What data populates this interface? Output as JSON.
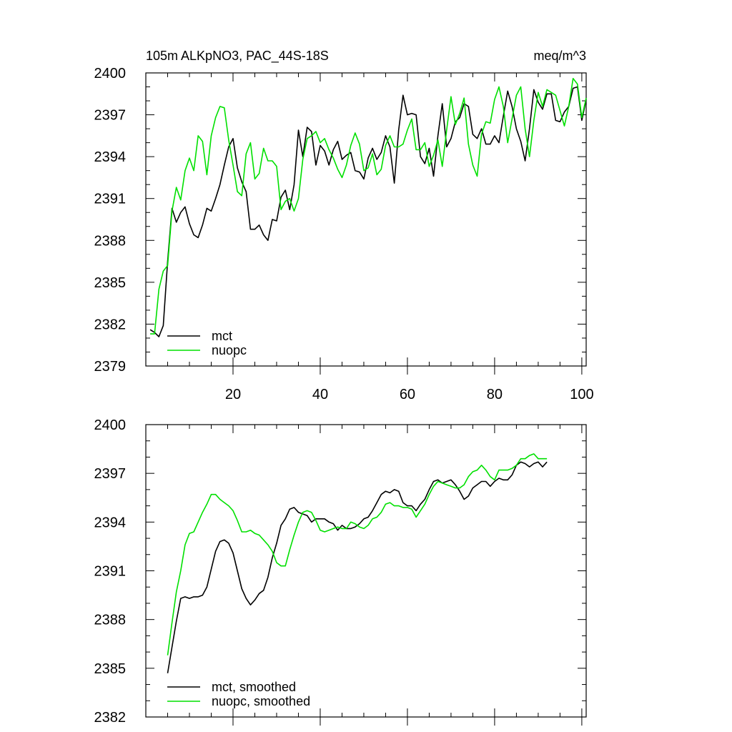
{
  "figure": {
    "title_left": "105m ALKpNO3, PAC_44S-18S",
    "title_right": "meq/m^3"
  },
  "colors": {
    "mct": "#000000",
    "nuopc": "#00e000"
  },
  "chart_data": [
    {
      "type": "line",
      "title": "105m ALKpNO3, PAC_44S-18S",
      "units": "meq/m^3",
      "xlim": [
        0,
        101
      ],
      "ylim": [
        2379,
        2400
      ],
      "xticks": [
        20,
        40,
        60,
        80,
        100
      ],
      "yticks": [
        2379,
        2382,
        2385,
        2388,
        2391,
        2394,
        2397,
        2400
      ],
      "legend": [
        "mct",
        "nuopc"
      ],
      "legend_position": "bottom-left",
      "series": [
        {
          "name": "mct",
          "color": "#000000",
          "x_start": 1,
          "values": [
            2381.6,
            2381.4,
            2381.1,
            2381.9,
            2386.5,
            2390.3,
            2389.3,
            2390.0,
            2390.4,
            2389.2,
            2388.4,
            2388.2,
            2389.1,
            2390.3,
            2390.1,
            2391.0,
            2392.0,
            2393.4,
            2394.7,
            2395.3,
            2393.2,
            2392.2,
            2391.5,
            2388.8,
            2388.8,
            2389.1,
            2388.4,
            2388.0,
            2389.5,
            2389.4,
            2391.1,
            2391.6,
            2390.2,
            2392.0,
            2395.9,
            2394.0,
            2396.1,
            2395.8,
            2393.4,
            2394.8,
            2394.4,
            2393.4,
            2394.5,
            2395.1,
            2393.8,
            2394.1,
            2394.3,
            2393.0,
            2392.9,
            2392.4,
            2393.9,
            2394.6,
            2393.8,
            2394.3,
            2395.5,
            2394.7,
            2392.1,
            2395.9,
            2398.4,
            2397.0,
            2397.1,
            2397.0,
            2394.0,
            2393.5,
            2394.6,
            2392.6,
            2395.5,
            2397.8,
            2394.7,
            2395.3,
            2396.5,
            2396.8,
            2397.8,
            2397.6,
            2395.6,
            2395.3,
            2396.0,
            2394.9,
            2394.9,
            2395.5,
            2395.0,
            2396.9,
            2398.7,
            2397.6,
            2396.0,
            2395.1,
            2393.7,
            2396.0,
            2398.8,
            2397.9,
            2397.4,
            2398.5,
            2398.5,
            2396.6,
            2396.5,
            2397.2,
            2397.6,
            2398.9,
            2399.0,
            2396.6,
            2398.1
          ]
        },
        {
          "name": "nuopc",
          "color": "#00e000",
          "x_start": 1,
          "values": [
            2381.3,
            2381.3,
            2384.5,
            2385.8,
            2386.2,
            2390.1,
            2391.8,
            2390.9,
            2393.0,
            2393.9,
            2393.0,
            2395.5,
            2395.1,
            2392.7,
            2395.5,
            2396.8,
            2397.6,
            2397.5,
            2395.2,
            2393.4,
            2391.5,
            2391.2,
            2394.2,
            2395.0,
            2392.4,
            2392.8,
            2394.6,
            2393.7,
            2393.7,
            2393.3,
            2390.2,
            2390.8,
            2391.0,
            2390.1,
            2391.0,
            2393.8,
            2395.3,
            2395.5,
            2395.8,
            2395.0,
            2395.3,
            2394.5,
            2393.9,
            2393.1,
            2392.5,
            2393.4,
            2394.8,
            2395.7,
            2394.9,
            2393.0,
            2393.2,
            2394.2,
            2392.7,
            2393.1,
            2394.8,
            2395.5,
            2394.7,
            2394.7,
            2394.9,
            2395.9,
            2396.7,
            2394.5,
            2394.5,
            2395.0,
            2393.3,
            2394.1,
            2395.2,
            2393.3,
            2395.9,
            2398.3,
            2396.3,
            2397.1,
            2398.2,
            2394.9,
            2393.4,
            2392.6,
            2395.6,
            2396.5,
            2396.4,
            2398.1,
            2399.0,
            2397.6,
            2395.0,
            2396.7,
            2398.4,
            2399.0,
            2396.0,
            2394.0,
            2396.6,
            2398.6,
            2397.6,
            2398.8,
            2398.6,
            2398.4,
            2397.3,
            2396.2,
            2397.6,
            2399.6,
            2399.2,
            2396.8,
            2398.2
          ]
        }
      ]
    },
    {
      "type": "line",
      "title": "",
      "xlim": [
        0,
        101
      ],
      "ylim": [
        2382,
        2400
      ],
      "xticks": [
        20,
        40,
        60,
        80,
        100
      ],
      "yticks": [
        2382,
        2385,
        2388,
        2391,
        2394,
        2397,
        2400
      ],
      "legend": [
        "mct, smoothed",
        "nuopc, smoothed"
      ],
      "legend_position": "bottom-left",
      "series": [
        {
          "name": "mct, smoothed",
          "color": "#000000",
          "x_start": 5,
          "values": [
            2384.7,
            2386.3,
            2387.9,
            2389.3,
            2389.4,
            2389.3,
            2389.4,
            2389.4,
            2389.5,
            2390.0,
            2391.1,
            2392.2,
            2392.8,
            2392.9,
            2392.7,
            2392.1,
            2391.0,
            2389.9,
            2389.3,
            2388.9,
            2389.2,
            2389.6,
            2389.8,
            2390.6,
            2391.8,
            2392.7,
            2393.8,
            2394.2,
            2394.8,
            2394.9,
            2394.6,
            2394.5,
            2394.4,
            2394.0,
            2394.2,
            2394.2,
            2394.2,
            2394.0,
            2393.9,
            2393.5,
            2393.8,
            2393.6,
            2393.6,
            2393.7,
            2393.9,
            2394.2,
            2394.3,
            2394.7,
            2395.2,
            2395.7,
            2395.9,
            2395.8,
            2396.0,
            2395.9,
            2395.2,
            2395.0,
            2395.0,
            2394.7,
            2395.1,
            2395.4,
            2396.0,
            2396.5,
            2396.6,
            2396.4,
            2396.5,
            2396.6,
            2396.3,
            2395.9,
            2395.4,
            2395.6,
            2396.1,
            2396.3,
            2396.5,
            2396.5,
            2396.2,
            2396.5,
            2396.7,
            2396.6,
            2396.6,
            2396.9,
            2397.5,
            2397.7,
            2397.6,
            2397.4,
            2397.6,
            2397.7,
            2397.4,
            2397.7
          ]
        },
        {
          "name": "nuopc, smoothed",
          "color": "#00e000",
          "x_start": 5,
          "values": [
            2385.8,
            2387.8,
            2389.7,
            2391.0,
            2392.6,
            2393.3,
            2393.4,
            2394.0,
            2394.6,
            2395.1,
            2395.7,
            2395.7,
            2395.4,
            2395.2,
            2395.0,
            2394.7,
            2394.1,
            2393.4,
            2393.4,
            2393.5,
            2393.3,
            2393.2,
            2392.9,
            2392.6,
            2392.2,
            2391.5,
            2391.3,
            2391.3,
            2392.3,
            2393.2,
            2394.0,
            2394.6,
            2394.7,
            2394.6,
            2394.1,
            2393.5,
            2393.4,
            2393.5,
            2393.6,
            2393.7,
            2393.6,
            2393.6,
            2394.0,
            2393.9,
            2393.7,
            2393.6,
            2393.8,
            2394.2,
            2394.3,
            2394.6,
            2395.1,
            2395.2,
            2395.0,
            2395.0,
            2394.9,
            2394.9,
            2394.8,
            2394.3,
            2394.7,
            2395.1,
            2395.7,
            2396.2,
            2396.5,
            2396.4,
            2396.3,
            2396.2,
            2396.1,
            2396.1,
            2396.3,
            2396.8,
            2397.1,
            2397.2,
            2397.5,
            2397.2,
            2396.8,
            2396.6,
            2397.2,
            2397.2,
            2397.2,
            2397.3,
            2397.5,
            2397.9,
            2397.9,
            2398.1,
            2398.2,
            2397.9,
            2397.9,
            2397.9
          ]
        }
      ]
    }
  ]
}
